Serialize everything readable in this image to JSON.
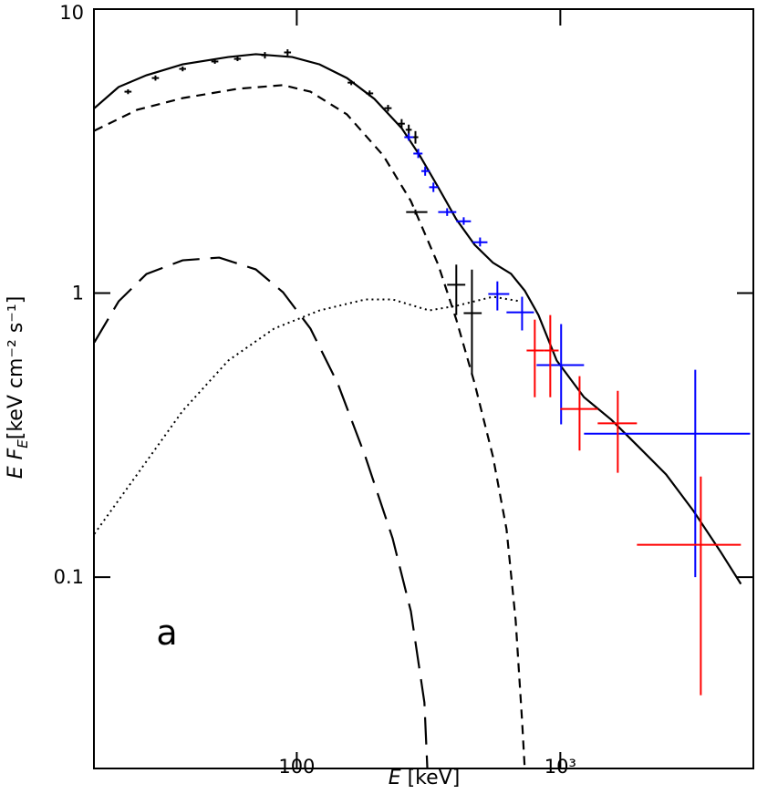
{
  "chart_data": {
    "type": "line",
    "annotation": "a",
    "xlabel": {
      "symbol": "E",
      "unit": "[keV]"
    },
    "ylabel": {
      "symbol": "E F",
      "subscript": "E",
      "unit": "[keV cm⁻² s⁻¹]"
    },
    "xscale": "log",
    "yscale": "log",
    "xlim": [
      17,
      5400
    ],
    "ylim": [
      0.0212,
      10
    ],
    "xticks": [
      100,
      {
        "value": 1000,
        "label": "10³"
      }
    ],
    "yticks": [
      0.1,
      1,
      10
    ],
    "series": [
      {
        "kind": "curve",
        "dash": "solid",
        "color": "#000000",
        "x": [
          17.06,
          21.1,
          26.9,
          36.9,
          55.0,
          69.9,
          96.1,
          122,
          155,
          197,
          250,
          293,
          344,
          403,
          473,
          555,
          650,
          733,
          826,
          969,
          1230,
          1563,
          1986,
          2520,
          3200,
          4064,
          4843
        ],
        "values": [
          4.48,
          5.32,
          5.85,
          6.39,
          6.78,
          6.94,
          6.78,
          6.39,
          5.72,
          4.83,
          3.81,
          3.05,
          2.36,
          1.82,
          1.48,
          1.28,
          1.17,
          1.02,
          0.837,
          0.579,
          0.43,
          0.358,
          0.287,
          0.23,
          0.171,
          0.1225,
          0.0946
        ]
      },
      {
        "kind": "curve",
        "dash": "dashed",
        "color": "#000000",
        "x": [
          17.06,
          24.8,
          36.9,
          59.6,
          88.7,
          112.7,
          155,
          213,
          271,
          344,
          403,
          473,
          555,
          625,
          677,
          716,
          733
        ],
        "values": [
          3.73,
          4.42,
          4.86,
          5.24,
          5.4,
          5.12,
          4.26,
          3.05,
          2.11,
          1.26,
          0.807,
          0.481,
          0.266,
          0.1475,
          0.0704,
          0.0312,
          0.0211
        ]
      },
      {
        "kind": "curve",
        "dash": "long-dashed",
        "color": "#000000",
        "x": [
          17.06,
          21.1,
          26.9,
          36.9,
          50.8,
          69.9,
          88.7,
          112.7,
          143,
          182,
          231,
          271,
          305,
          313
        ],
        "values": [
          0.671,
          0.936,
          1.168,
          1.305,
          1.334,
          1.212,
          1.007,
          0.75,
          0.481,
          0.266,
          0.137,
          0.0758,
          0.0362,
          0.0211
        ]
      },
      {
        "kind": "curve",
        "dash": "dotted",
        "color": "#000000",
        "x": [
          17.06,
          24.8,
          36.9,
          55.0,
          82.0,
          122,
          182,
          231,
          318,
          403,
          555,
          705
        ],
        "values": [
          0.142,
          0.23,
          0.385,
          0.579,
          0.75,
          0.869,
          0.95,
          0.95,
          0.869,
          0.902,
          0.971,
          0.936
        ]
      },
      {
        "kind": "errorbar",
        "color": "#000000",
        "x": [
          22.9,
          29.1,
          36.9,
          48.9,
          59.6,
          75.7,
          92.3,
          161,
          189,
          222,
          250,
          266,
          282,
          282,
          403,
          462
        ],
        "values": [
          5.12,
          5.72,
          6.16,
          6.54,
          6.68,
          6.88,
          7.04,
          5.51,
          5.05,
          4.48,
          3.95,
          3.76,
          3.54,
          1.93,
          1.07,
          0.85
        ],
        "x_low": [
          22.2,
          28.2,
          35.8,
          47.4,
          57.8,
          73.4,
          89.5,
          156,
          183,
          215,
          243,
          259,
          275,
          260,
          372,
          430
        ],
        "x_high": [
          23.6,
          30.0,
          38.0,
          50.4,
          61.4,
          78.0,
          95.1,
          166,
          195,
          229,
          257,
          273,
          289,
          313,
          436,
          503
        ],
        "y_low": [
          5.02,
          5.6,
          6.04,
          6.42,
          6.56,
          6.7,
          6.86,
          5.4,
          4.93,
          4.36,
          3.8,
          3.6,
          3.36,
          1.89,
          0.837,
          0.518
        ],
        "y_high": [
          5.22,
          5.84,
          6.28,
          6.66,
          6.8,
          7.06,
          7.22,
          5.62,
          5.17,
          4.6,
          4.1,
          3.92,
          3.72,
          1.97,
          1.26,
          1.21
        ]
      },
      {
        "kind": "errorbar",
        "color": "#0000ff",
        "x": [
          266,
          289,
          307,
          330,
          372,
          430,
          496,
          577,
          716,
          1007,
          3251
        ],
        "values": [
          3.54,
          3.1,
          2.69,
          2.36,
          1.93,
          1.79,
          1.51,
          0.993,
          0.856,
          0.558,
          0.32
        ],
        "x_low": [
          256,
          277,
          297,
          318,
          344,
          403,
          465,
          533,
          625,
          813,
          1230
        ],
        "x_high": [
          277,
          300,
          320,
          344,
          403,
          458,
          529,
          640,
          794,
          1230,
          5248
        ],
        "y_low": [
          3.44,
          2.99,
          2.59,
          2.27,
          1.87,
          1.74,
          1.46,
          0.869,
          0.739,
          0.345,
          0.1
        ],
        "y_high": [
          3.65,
          3.22,
          2.79,
          2.45,
          1.99,
          1.85,
          1.57,
          1.1,
          0.971,
          0.778,
          0.537
        ]
      },
      {
        "kind": "errorbar",
        "color": "#ff0000",
        "x": [
          800,
          916,
          1183,
          1652,
          3412
        ],
        "values": [
          0.628,
          0.628,
          0.391,
          0.348,
          0.13
        ],
        "x_low": [
          745,
          866,
          1000,
          1386,
          1953
        ],
        "x_high": [
          866,
          985,
          1386,
          1953,
          4843
        ],
        "y_low": [
          0.43,
          0.43,
          0.279,
          0.233,
          0.0384
        ],
        "y_high": [
          0.807,
          0.837,
          0.51,
          0.453,
          0.226
        ]
      }
    ]
  }
}
